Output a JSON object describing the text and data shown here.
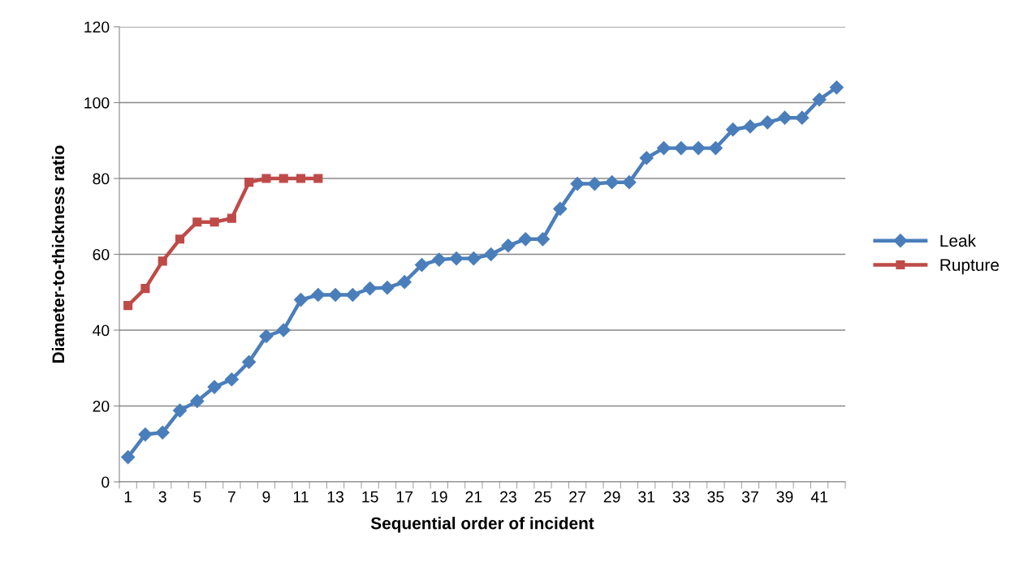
{
  "chart_data": {
    "type": "line",
    "xlabel": "Sequential order of incident",
    "ylabel": "Diameter-to-thickness ratio",
    "categories": [
      "1",
      null,
      "3",
      null,
      "5",
      null,
      "7",
      null,
      "9",
      null,
      "11",
      null,
      "13",
      null,
      "15",
      null,
      "17",
      null,
      "19",
      null,
      "21",
      null,
      "23",
      null,
      "25",
      null,
      "27",
      null,
      "29",
      null,
      "31",
      null,
      "33",
      null,
      "35",
      null,
      "37",
      null,
      "39",
      null,
      "41",
      null
    ],
    "series": [
      {
        "name": "Leak",
        "color": "#4a7ebb",
        "marker": "diamond",
        "values": [
          6.5,
          12.5,
          13,
          18.8,
          21.3,
          25,
          27,
          31.6,
          38.4,
          40,
          48,
          49.3,
          49.3,
          49.3,
          51,
          51.2,
          52.7,
          57.2,
          58.6,
          58.9,
          58.9,
          60,
          62.3,
          64,
          64,
          72,
          78.6,
          78.6,
          79,
          79,
          85.4,
          88,
          88,
          88,
          88,
          92.9,
          93.7,
          94.8,
          96,
          96,
          100.8,
          104
        ]
      },
      {
        "name": "Rupture",
        "color": "#be4b48",
        "marker": "square",
        "values": [
          46.5,
          51,
          58.2,
          64,
          68.5,
          68.5,
          69.5,
          79,
          80,
          80,
          80,
          80,
          null,
          null,
          null,
          null,
          null,
          null,
          null,
          null,
          null,
          null,
          null,
          null,
          null,
          null,
          null,
          null,
          null,
          null,
          null,
          null,
          null,
          null,
          null,
          null,
          null,
          null,
          null,
          null,
          null,
          null
        ]
      }
    ],
    "ylim": [
      0,
      120
    ],
    "yticks": [
      0,
      20,
      40,
      60,
      80,
      100,
      120
    ],
    "grid": "y",
    "legend": "right",
    "line_style": "solid"
  }
}
